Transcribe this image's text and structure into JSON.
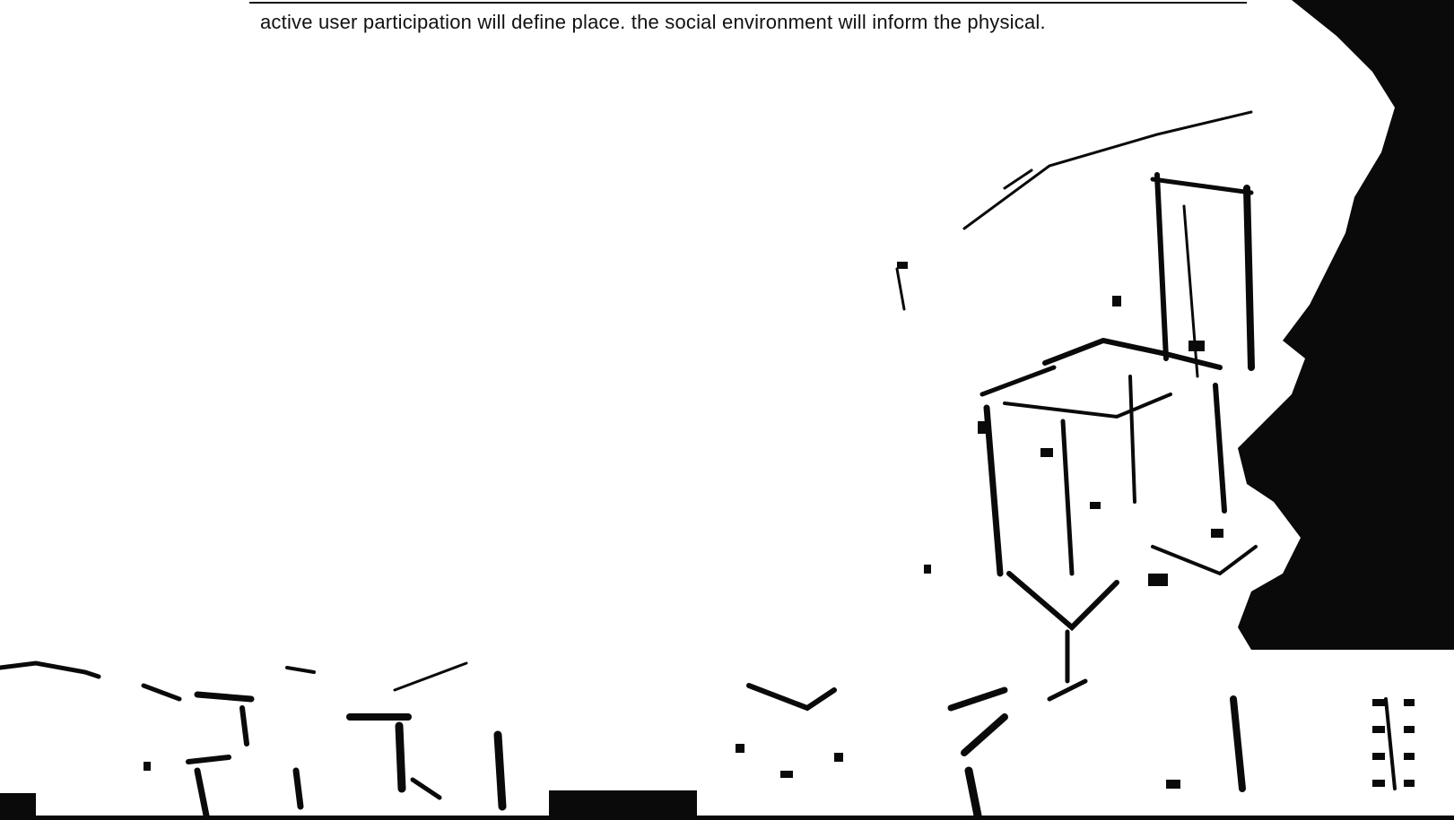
{
  "caption": {
    "text": "active user participation will define place. the social environment will inform the physical."
  },
  "photo": {
    "subject": "photocopied-building-model-photo",
    "colors": {
      "ink": "#0a0a0a",
      "paper": "#ffffff"
    }
  }
}
